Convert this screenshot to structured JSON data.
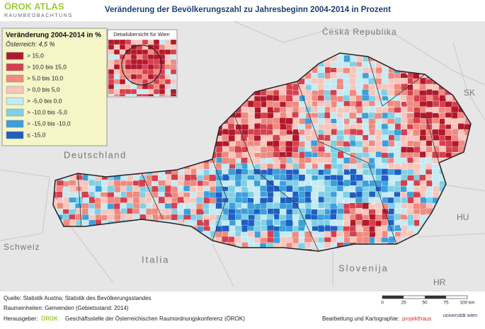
{
  "header": {
    "logo": "ÖROK ATLAS",
    "logo_sub": "RAUMBEOBACHTUNG",
    "title": "Veränderung der Bevölkerungszahl zu Jahresbeginn 2004-2014 in Prozent"
  },
  "legend": {
    "title": "Veränderung 2004-2014 in %",
    "subtitle": "Österreich: 4,5 %",
    "items": [
      {
        "label": "> 15,0",
        "color": "#b2182b"
      },
      {
        "label": "> 10,0  bis  15,0",
        "color": "#d6404e"
      },
      {
        "label": "> 5,0  bis  10,0",
        "color": "#f08a80"
      },
      {
        "label": "> 0,0  bis  5,0",
        "color": "#f9c6bd"
      },
      {
        "label": "> -5,0  bis  0,0",
        "color": "#c6eaf2"
      },
      {
        "label": "> -10,0  bis  -5,0",
        "color": "#7fd0e6"
      },
      {
        "label": "> -15,0  bis -10,0",
        "color": "#3ba0dc"
      },
      {
        "label": "≤  -15,0",
        "color": "#1f5fc4"
      }
    ]
  },
  "inset": {
    "title": "Detailübersicht für Wien"
  },
  "countries": {
    "cz": "Česká Republika",
    "sk": "SK",
    "de": "Deutschland",
    "hu": "HU",
    "ch": "Schweiz",
    "it": "Italia",
    "si": "Slovenija",
    "hr": "HR"
  },
  "footer": {
    "source": "Quelle: Statistik Austria; Statistik des Bevölkerungsstandes",
    "units": "Raumeinheiten: Gemeinden (Gebietsstand: 2014)",
    "publisher_label": "Herausgeber:",
    "publisher_logo": "ÖROK",
    "publisher": "Geschäftsstelle der Österreichischen Raumordnungskonferenz (ÖROK)",
    "credit_label": "Bearbeitung und Kartographie:",
    "credit1": "projekthaus",
    "credit2": "universität wien"
  },
  "scale": {
    "labels": [
      "0",
      "25",
      "50",
      "75",
      "100 km"
    ]
  }
}
